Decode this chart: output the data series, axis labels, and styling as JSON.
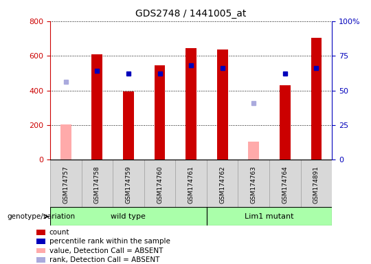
{
  "title": "GDS2748 / 1441005_at",
  "samples": [
    "GSM174757",
    "GSM174758",
    "GSM174759",
    "GSM174760",
    "GSM174761",
    "GSM174762",
    "GSM174763",
    "GSM174764",
    "GSM174891"
  ],
  "count_values": [
    null,
    610,
    395,
    545,
    645,
    638,
    null,
    430,
    705
  ],
  "count_absent_values": [
    205,
    null,
    null,
    null,
    null,
    null,
    105,
    null,
    null
  ],
  "rank_values_pct": [
    null,
    64,
    62,
    62,
    68,
    66,
    null,
    62,
    66
  ],
  "rank_absent_values_pct": [
    56,
    null,
    null,
    null,
    null,
    null,
    41,
    null,
    null
  ],
  "ylim_left": [
    0,
    800
  ],
  "ylim_right": [
    0,
    100
  ],
  "yticks_left": [
    0,
    200,
    400,
    600,
    800
  ],
  "yticks_right": [
    0,
    25,
    50,
    75,
    100
  ],
  "bar_width": 0.35,
  "count_color": "#cc0000",
  "count_absent_color": "#ffaaaa",
  "rank_marker_color": "#0000bb",
  "rank_absent_marker_color": "#aaaadd",
  "marker_size": 5,
  "grid_color": "#000000",
  "bg_color": "#ffffff",
  "plot_bg_color": "#ffffff",
  "left_axis_color": "#cc0000",
  "right_axis_color": "#0000bb",
  "sample_box_color": "#d8d8d8",
  "group_colors": [
    "#aaffaa",
    "#aaffaa"
  ],
  "group_labels": [
    "wild type",
    "Lim1 mutant"
  ],
  "group_ranges": [
    [
      0,
      4
    ],
    [
      5,
      8
    ]
  ],
  "legend_items": [
    {
      "color": "#cc0000",
      "label": "count"
    },
    {
      "color": "#0000bb",
      "label": "percentile rank within the sample"
    },
    {
      "color": "#ffaaaa",
      "label": "value, Detection Call = ABSENT"
    },
    {
      "color": "#aaaadd",
      "label": "rank, Detection Call = ABSENT"
    }
  ]
}
